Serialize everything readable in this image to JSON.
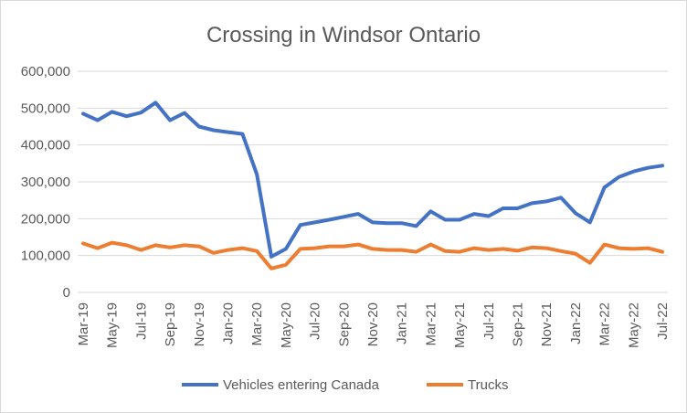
{
  "chart_data": {
    "type": "line",
    "title": "Crossing in Windsor Ontario",
    "xlabel": "",
    "ylabel": "",
    "ylim": [
      0,
      600000
    ],
    "y_ticks": [
      0,
      100000,
      200000,
      300000,
      400000,
      500000,
      600000
    ],
    "y_tick_labels": [
      "0",
      "100,000",
      "200,000",
      "300,000",
      "400,000",
      "500,000",
      "600,000"
    ],
    "x": [
      "Mar-19",
      "Apr-19",
      "May-19",
      "Jun-19",
      "Jul-19",
      "Aug-19",
      "Sep-19",
      "Oct-19",
      "Nov-19",
      "Dec-19",
      "Jan-20",
      "Feb-20",
      "Mar-20",
      "Apr-20",
      "May-20",
      "Jun-20",
      "Jul-20",
      "Aug-20",
      "Sep-20",
      "Oct-20",
      "Nov-20",
      "Dec-20",
      "Jan-21",
      "Feb-21",
      "Mar-21",
      "Apr-21",
      "May-21",
      "Jun-21",
      "Jul-21",
      "Aug-21",
      "Sep-21",
      "Oct-21",
      "Nov-21",
      "Dec-21",
      "Jan-22",
      "Feb-22",
      "Mar-22",
      "Apr-22",
      "May-22",
      "Jun-22",
      "Jul-22"
    ],
    "x_tick_labels": [
      "Mar-19",
      "May-19",
      "Jul-19",
      "Sep-19",
      "Nov-19",
      "Jan-20",
      "Mar-20",
      "May-20",
      "Jul-20",
      "Sep-20",
      "Nov-20",
      "Jan-21",
      "Mar-21",
      "May-21",
      "Jul-21",
      "Sep-21",
      "Nov-21",
      "Jan-22",
      "Mar-22",
      "May-22",
      "Jul-22"
    ],
    "grid": true,
    "legend_position": "bottom",
    "series": [
      {
        "name": "Vehicles entering Canada",
        "color": "#4472c4",
        "values": [
          485000,
          467000,
          490000,
          478000,
          488000,
          515000,
          467000,
          487000,
          450000,
          440000,
          435000,
          430000,
          320000,
          97000,
          118000,
          183000,
          190000,
          197000,
          205000,
          213000,
          190000,
          188000,
          188000,
          180000,
          220000,
          197000,
          197000,
          213000,
          207000,
          228000,
          228000,
          242000,
          247000,
          257000,
          215000,
          190000,
          285000,
          313000,
          328000,
          338000,
          344000
        ]
      },
      {
        "name": "Trucks",
        "color": "#ed7d31",
        "values": [
          133000,
          120000,
          135000,
          128000,
          115000,
          128000,
          122000,
          128000,
          125000,
          107000,
          115000,
          120000,
          112000,
          65000,
          75000,
          118000,
          120000,
          125000,
          125000,
          130000,
          118000,
          115000,
          115000,
          110000,
          130000,
          112000,
          110000,
          120000,
          115000,
          118000,
          113000,
          122000,
          120000,
          112000,
          105000,
          80000,
          130000,
          120000,
          118000,
          120000,
          110000
        ]
      }
    ]
  }
}
